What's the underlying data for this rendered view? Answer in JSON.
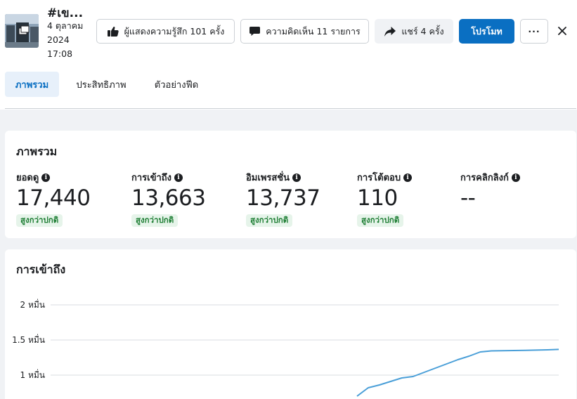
{
  "post": {
    "title": "#เข...",
    "date_line1": "4 ตุลาคม",
    "date_line2": "2024",
    "time": "17:08",
    "thumbnail_icon": "post-thumbnail-photo"
  },
  "actions": {
    "reactions_label": "ผู้แสดงความรู้สึก 101 ครั้ง",
    "comments_label": "ความคิดเห็น 11 รายการ",
    "shares_label": "แชร์ 4 ครั้ง",
    "promote_label": "โปรโมท",
    "more_label": "···"
  },
  "tabs": [
    {
      "label": "ภาพรวม",
      "active": true
    },
    {
      "label": "ประสิทธิภาพ",
      "active": false
    },
    {
      "label": "ตัวอย่างฟีด",
      "active": false
    }
  ],
  "overview": {
    "title": "ภาพรวม",
    "metrics": [
      {
        "label": "ยอดดู",
        "value": "17,440",
        "badge": "สูงกว่าปกติ"
      },
      {
        "label": "การเข้าถึง",
        "value": "13,663",
        "badge": "สูงกว่าปกติ"
      },
      {
        "label": "อิมเพรสชั่น",
        "value": "13,737",
        "badge": "สูงกว่าปกติ"
      },
      {
        "label": "การโต้ตอบ",
        "value": "110",
        "badge": "สูงกว่าปกติ"
      },
      {
        "label": "การคลิกลิงก์",
        "value": "--",
        "badge": ""
      }
    ]
  },
  "reach_chart": {
    "title": "การเข้าถึง",
    "chart_data": {
      "type": "line",
      "title": "การเข้าถึง",
      "yticks": [
        {
          "value": 20000,
          "label": "2 หมื่น"
        },
        {
          "value": 15000,
          "label": "1.5 หมื่น"
        },
        {
          "value": 10000,
          "label": "1 หมื่น"
        }
      ],
      "ylim": [
        0,
        22000
      ],
      "grid": true,
      "line_color": "#4a9fd8",
      "series": [
        {
          "values": [
            7000,
            8200,
            8600,
            9100,
            9600,
            9800,
            10400,
            11000,
            11600,
            12200,
            12700,
            13300,
            13450,
            13480,
            13500,
            13520,
            13560,
            13600,
            13663
          ]
        }
      ]
    }
  },
  "colors": {
    "accent": "#0a6fc2",
    "positive_badge_bg": "#e6f4ea",
    "positive_badge_text": "#1e7e34"
  }
}
